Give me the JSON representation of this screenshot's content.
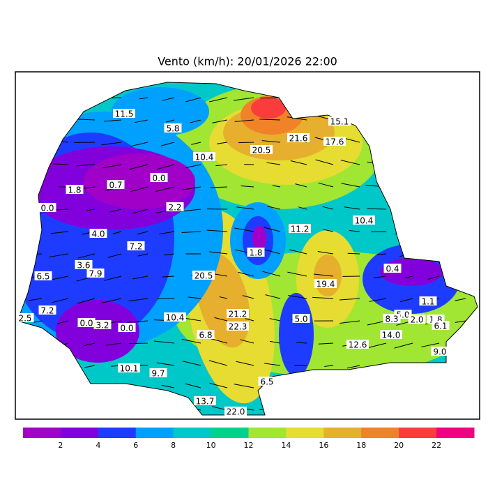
{
  "title": "Vento (km/h): 20/01/2026 22:00",
  "stations": [
    "11.5",
    "5.8",
    "15.1",
    "21.6",
    "17.6",
    "20.5",
    "10.4",
    "1.8",
    "0.7",
    "0.0",
    "0.0",
    "2.2",
    "10.4",
    "11.2",
    "4.0",
    "7.2",
    "1.8",
    "3.6",
    "7.9",
    "6.5",
    "0.4",
    "20.5",
    "19.4",
    "1.1",
    "7.2",
    "2.5",
    "21.2",
    "10.4",
    "5.0",
    "0.0",
    "3.2",
    "0.0",
    "22.3",
    "5.0",
    "8.3",
    "2.0",
    "1.8",
    "6.1",
    "6.8",
    "14.0",
    "12.6",
    "9.0",
    "10.1",
    "9.7",
    "6.5",
    "13.7",
    "22.0"
  ],
  "colorbar": {
    "colors": [
      "#a000c8",
      "#8200dc",
      "#1e3cff",
      "#00a0ff",
      "#00c8c8",
      "#00d28c",
      "#a0e632",
      "#e6dc32",
      "#e6af2d",
      "#f08228",
      "#fa3c3c",
      "#f00082"
    ],
    "ticks": [
      2,
      4,
      6,
      8,
      10,
      12,
      14,
      16,
      18,
      20,
      22
    ]
  }
}
